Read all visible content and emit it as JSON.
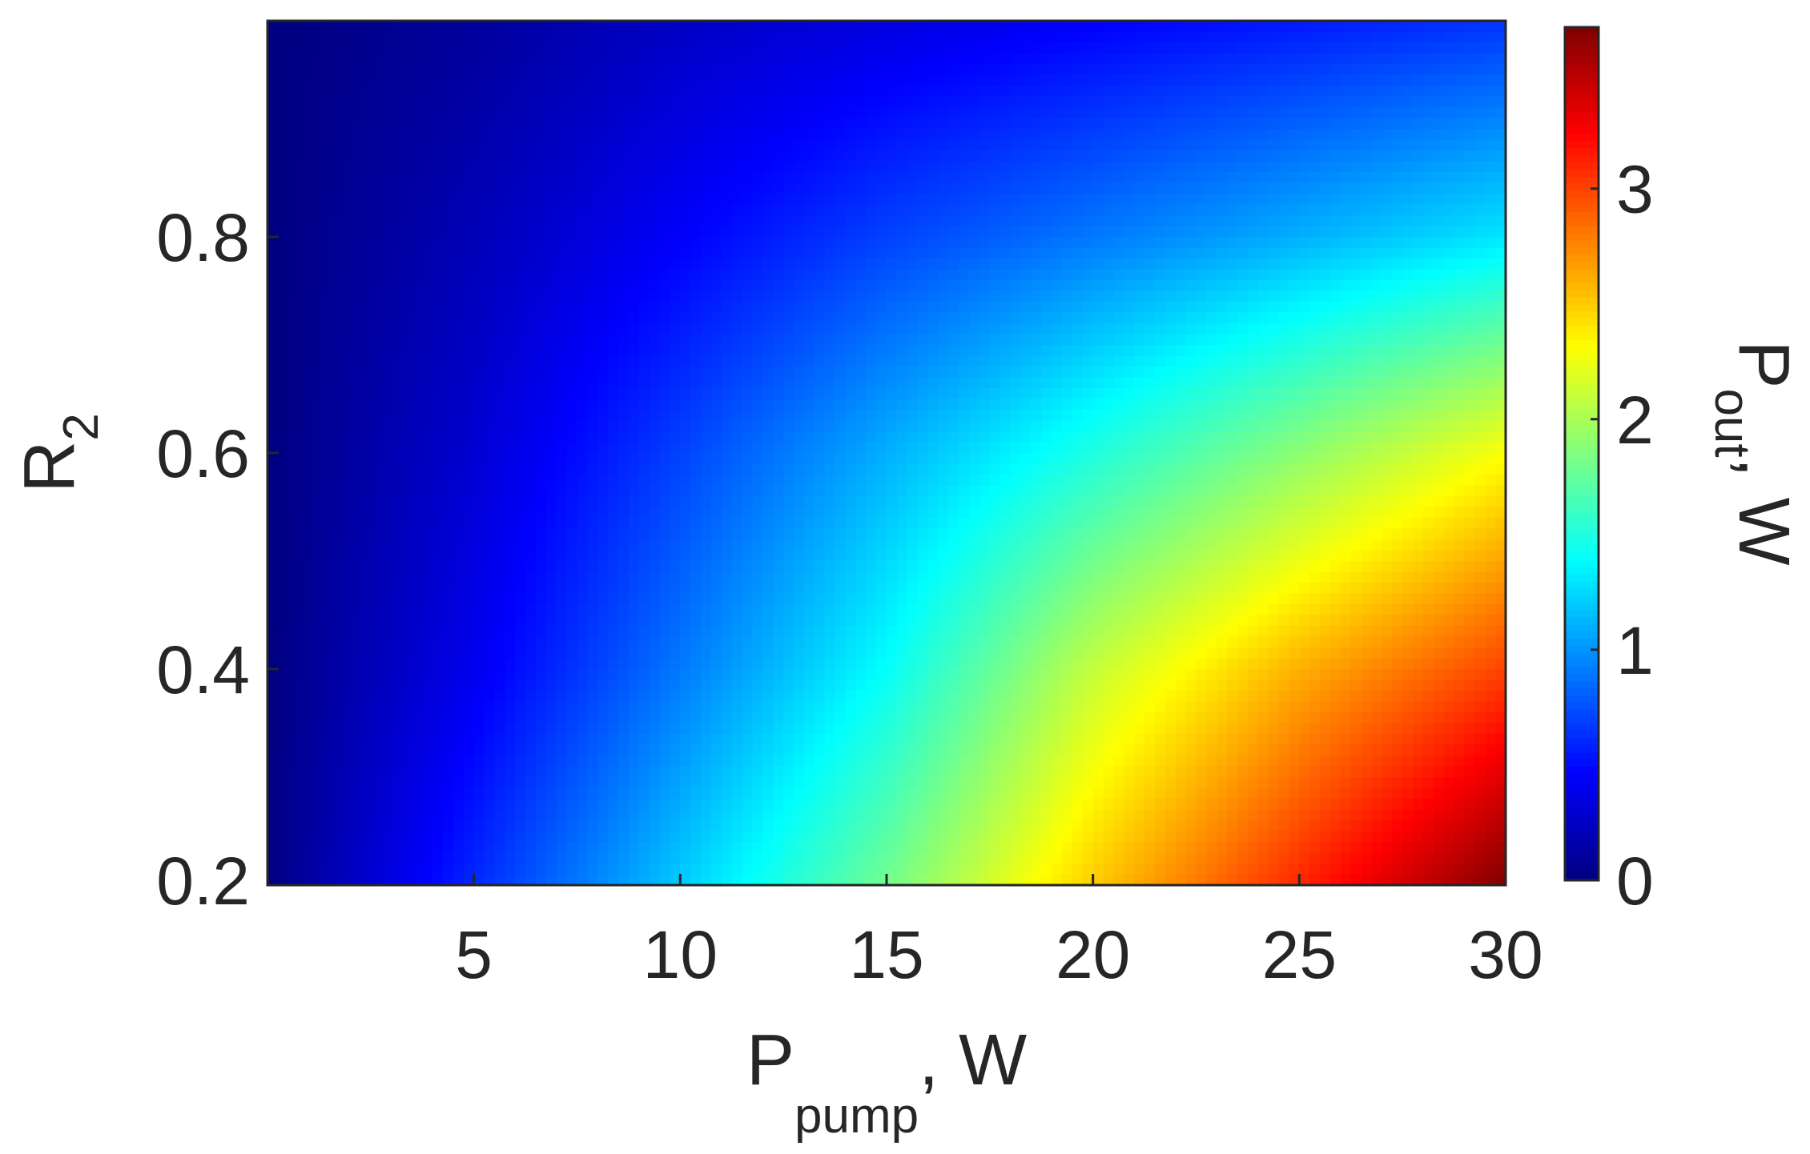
{
  "chart_data": {
    "type": "heatmap",
    "title": "",
    "xlabel": {
      "main": "P",
      "subscript": "pump",
      "suffix": ", W"
    },
    "ylabel": {
      "main": "R",
      "subscript": "2",
      "suffix": ""
    },
    "colorbar_label": {
      "main": "P",
      "subscript": "out",
      "suffix": ", W"
    },
    "xlim": [
      0,
      30
    ],
    "ylim": [
      0.2,
      1.0
    ],
    "clim": [
      0,
      3.7
    ],
    "xticks": [
      5,
      10,
      15,
      20,
      25,
      30
    ],
    "yticks": [
      0.2,
      0.4,
      0.6,
      0.8
    ],
    "cticks": [
      0,
      1,
      2,
      3
    ],
    "colormap": "jet",
    "x": [
      0,
      5,
      10,
      15,
      20,
      25,
      30
    ],
    "y": [
      0.2,
      0.4,
      0.6,
      0.8,
      1.0
    ],
    "z": [
      [
        0.0,
        0.6,
        1.2,
        1.8,
        2.5,
        3.1,
        3.7
      ],
      [
        0.0,
        0.4,
        0.9,
        1.4,
        2.1,
        2.6,
        3.0
      ],
      [
        0.0,
        0.3,
        0.7,
        1.1,
        1.5,
        1.9,
        2.3
      ],
      [
        0.0,
        0.2,
        0.45,
        0.7,
        0.9,
        1.1,
        1.3
      ],
      [
        0.0,
        0.1,
        0.25,
        0.35,
        0.45,
        0.55,
        0.65
      ]
    ],
    "grid": false,
    "legend": "none"
  }
}
